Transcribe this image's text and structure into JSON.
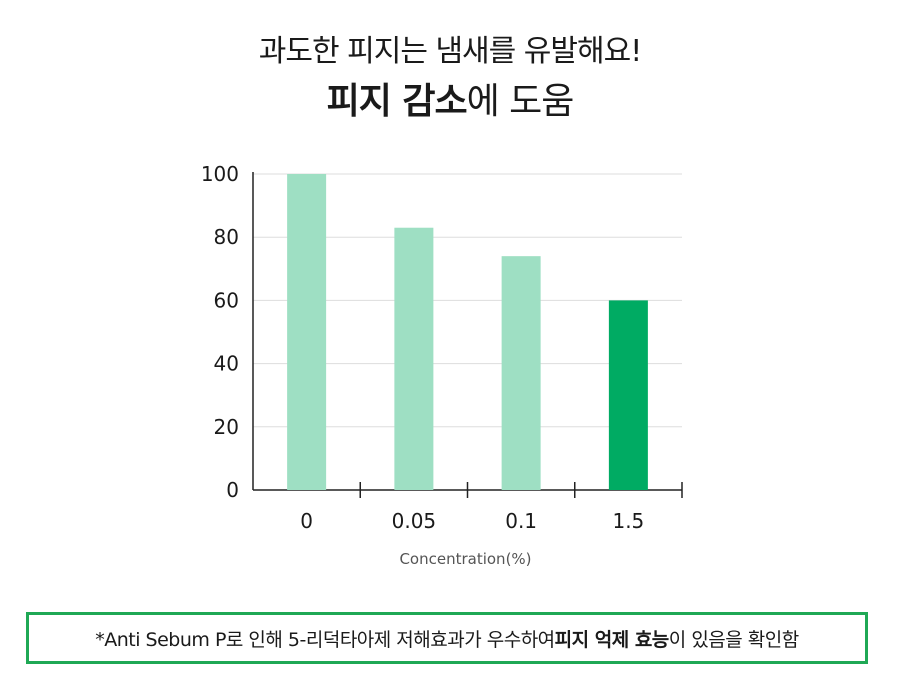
{
  "headline": {
    "line1": "과도한 피지는 냄새를 유발해요!",
    "line2_bold": "피지 감소",
    "line2_rest": "에 도움"
  },
  "chart_data": {
    "type": "bar",
    "categories": [
      "0",
      "0.05",
      "0.1",
      "1.5"
    ],
    "values": [
      100,
      83,
      74,
      60
    ],
    "xlabel": "Concentration(%)",
    "ylabel": "",
    "ylim": [
      0,
      100
    ],
    "yticks": [
      0,
      20,
      40,
      60,
      80,
      100
    ],
    "grid": true,
    "colors": {
      "default": "#9edfc3",
      "highlight": "#00ab63",
      "highlight_index": 3,
      "grid": "#dddddd",
      "axis": "#222222"
    }
  },
  "footnote": {
    "prefix": "*Anti Sebum P로 인해 5-리덕타아제 저해효과가 우수하여 ",
    "bold": "피지 억제 효능",
    "suffix": "이 있음을 확인함",
    "border_color": "#1fa855"
  }
}
